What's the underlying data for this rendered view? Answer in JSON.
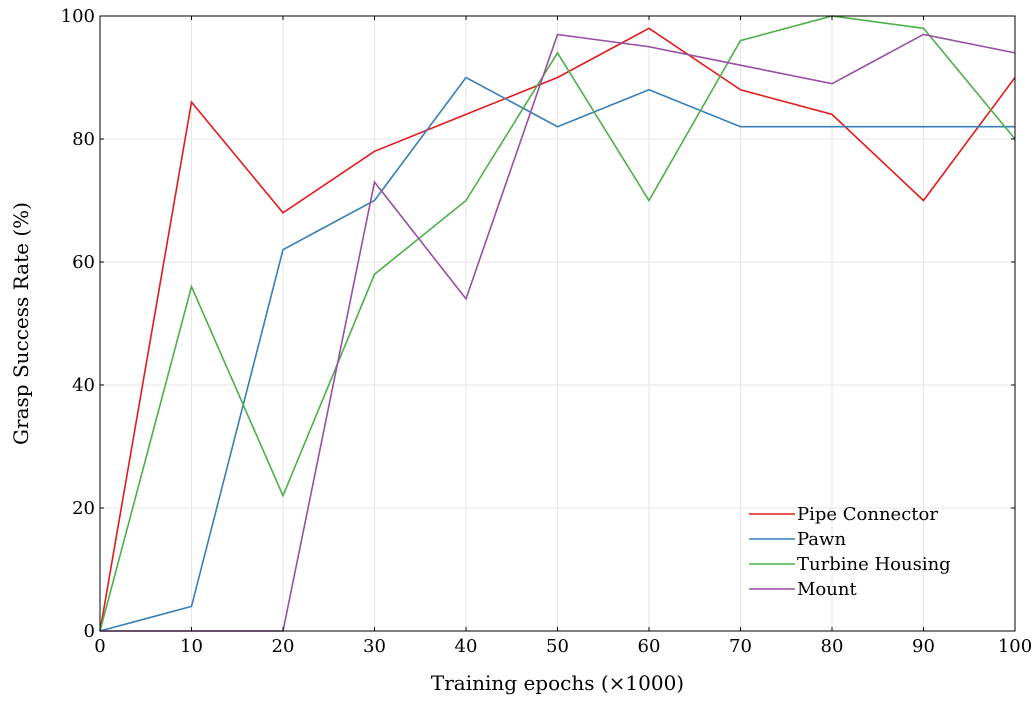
{
  "chart_data": {
    "type": "line",
    "xlabel": "Training epochs (×1000)",
    "ylabel": "Grasp Success Rate (%)",
    "xlim": [
      0,
      100
    ],
    "ylim": [
      0,
      100
    ],
    "xticks": [
      0,
      10,
      20,
      30,
      40,
      50,
      60,
      70,
      80,
      90,
      100
    ],
    "yticks": [
      0,
      20,
      40,
      60,
      80,
      100
    ],
    "grid": true,
    "legend_position": "bottom-right",
    "x": [
      0,
      10,
      20,
      30,
      40,
      50,
      60,
      70,
      80,
      90,
      100
    ],
    "series": [
      {
        "name": "Pipe Connector",
        "color": "#e31a1c",
        "values": [
          0,
          86,
          68,
          78,
          84,
          90,
          98,
          88,
          84,
          70,
          90
        ]
      },
      {
        "name": "Pawn",
        "color": "#377eb8",
        "values": [
          0,
          4,
          62,
          70,
          90,
          82,
          88,
          82,
          82,
          82,
          82
        ]
      },
      {
        "name": "Turbine Housing",
        "color": "#4daf4a",
        "values": [
          0,
          56,
          22,
          58,
          70,
          94,
          70,
          96,
          100,
          98,
          80
        ]
      },
      {
        "name": "Mount",
        "color": "#984ea3",
        "values": [
          0,
          0,
          0,
          73,
          54,
          97,
          95,
          92,
          89,
          97,
          94
        ]
      }
    ]
  }
}
